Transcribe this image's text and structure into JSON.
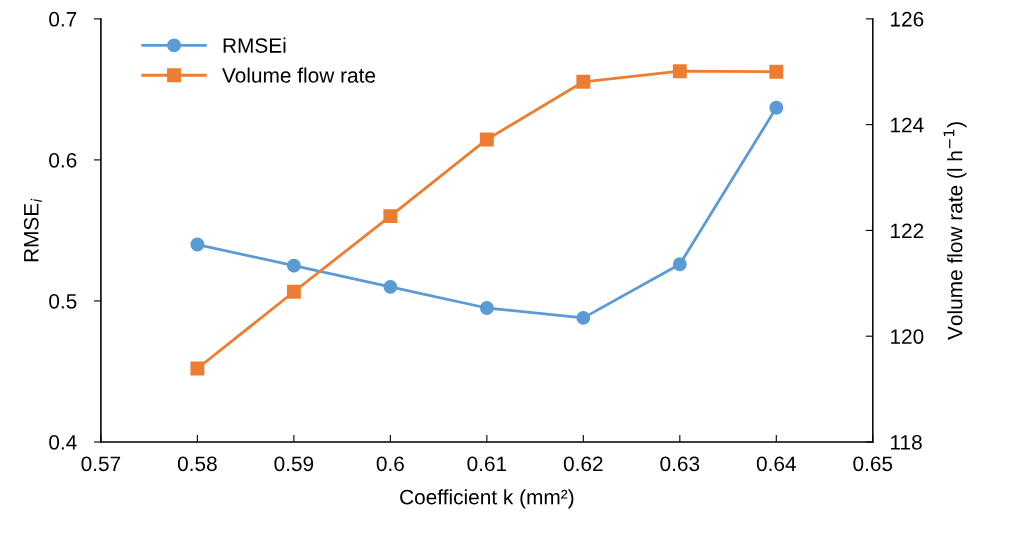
{
  "chart_data": {
    "type": "line",
    "xlabel": "Coefficient k (mm²)",
    "ylabel": "RMSE$_{i}$",
    "y2label": "Volume flow rate (l h$^{−1}$)",
    "x": [
      0.58,
      0.59,
      0.6,
      0.61,
      0.62,
      0.63,
      0.64
    ],
    "series": [
      {
        "name": "RMSEi",
        "color": "#5b9bd5",
        "marker": "circle",
        "values": [
          0.54,
          0.525,
          0.51,
          0.495,
          0.488,
          0.526,
          0.637
        ]
      },
      {
        "name": "Volume flow rate",
        "color": "#ed7d31",
        "marker": "square",
        "axis": "y2",
        "values": [
          119.39,
          120.84,
          122.27,
          123.72,
          124.81,
          125.01,
          125.0
        ]
      }
    ],
    "xlim": [
      0.57,
      0.65
    ],
    "xticks": [
      0.57,
      0.58,
      0.59,
      0.6,
      0.61,
      0.62,
      0.63,
      0.64,
      0.65
    ],
    "ylim": [
      0.4,
      0.7
    ],
    "yticks": [
      0.4,
      0.5,
      0.6,
      0.7
    ],
    "y2lim": [
      118,
      126
    ],
    "y2ticks": [
      118,
      120,
      122,
      124,
      126
    ],
    "grid": false,
    "legend": "top left"
  }
}
